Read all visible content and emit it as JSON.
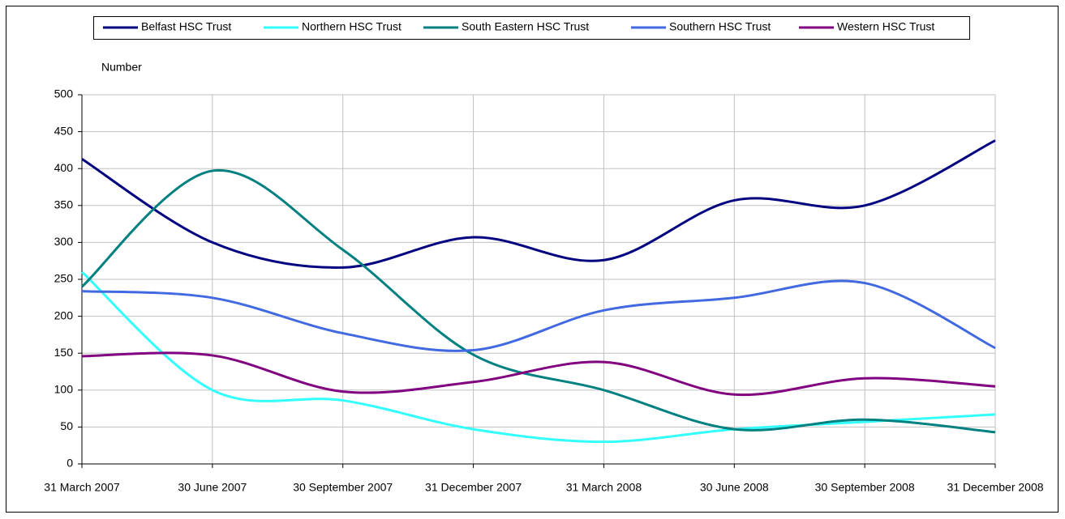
{
  "chart_data": {
    "type": "line",
    "y_label": "Number",
    "categories": [
      "31 March 2007",
      "30 June 2007",
      "30 September 2007",
      "31 December 2007",
      "31 March 2008",
      "30 June 2008",
      "30 September 2008",
      "31 December 2008"
    ],
    "series": [
      {
        "name": "Belfast HSC Trust",
        "color": "#000080",
        "values": [
          413,
          300,
          266,
          307,
          276,
          357,
          350,
          438
        ]
      },
      {
        "name": "Northern HSC Trust",
        "color": "#33ffff",
        "values": [
          260,
          100,
          86,
          47,
          30,
          47,
          57,
          67
        ]
      },
      {
        "name": "South Eastern HSC Trust",
        "color": "#008080",
        "values": [
          240,
          397,
          290,
          148,
          100,
          47,
          60,
          43
        ]
      },
      {
        "name": "Southern HSC Trust",
        "color": "#4169e1",
        "values": [
          234,
          225,
          177,
          154,
          208,
          225,
          245,
          157
        ]
      },
      {
        "name": "Western HSC Trust",
        "color": "#800080",
        "values": [
          146,
          147,
          98,
          111,
          138,
          94,
          116,
          105
        ]
      }
    ],
    "ylim": [
      0,
      500
    ],
    "yticks": [
      0,
      50,
      100,
      150,
      200,
      250,
      300,
      350,
      400,
      450,
      500
    ],
    "grid": true,
    "legend": "top"
  }
}
